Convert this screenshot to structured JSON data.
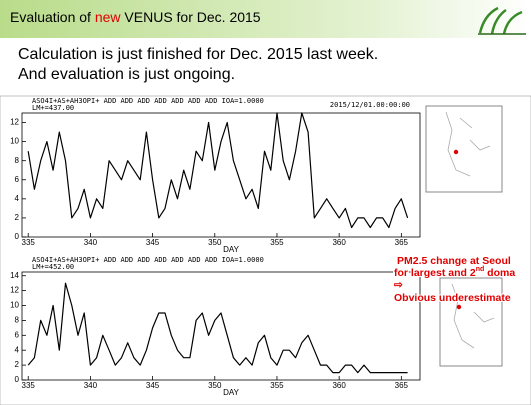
{
  "header": {
    "title_parts": [
      "Evaluation of ",
      "new",
      " VENUS for Dec. 2015"
    ]
  },
  "body": [
    "Calculation is just finished for Dec. 2015 last week.",
    "And evaluation is just ongoing."
  ],
  "annotation": {
    "line1": "PM2.5 change at Seoul",
    "line2_parts": [
      "for largest and 2",
      "nd",
      " doma"
    ],
    "arrow": "⇨",
    "note": "Obvious underestimate"
  },
  "chart_data": [
    {
      "type": "line",
      "title": "ASO4I+AS+AH3OPI+ ADD ADD ADD ADD ADD ADD ADD IOA=1.0000",
      "subtitle": "LM+=437.00",
      "date": "2015/12/01.00:00:00",
      "xlabel": "DAY",
      "x": [
        335,
        335.5,
        336,
        336.5,
        337,
        337.5,
        338,
        338.5,
        339,
        339.5,
        340,
        340.5,
        341,
        341.5,
        342,
        342.5,
        343,
        343.5,
        344,
        344.5,
        345,
        345.5,
        346,
        346.5,
        347,
        347.5,
        348,
        348.5,
        349,
        349.5,
        350,
        350.5,
        351,
        351.5,
        352,
        352.5,
        353,
        353.5,
        354,
        354.5,
        355,
        355.5,
        356,
        356.5,
        357,
        357.5,
        358,
        358.5,
        359,
        359.5,
        360,
        360.5,
        361,
        361.5,
        362,
        362.5,
        363,
        363.5,
        364,
        364.5,
        365,
        365.5
      ],
      "series": [
        {
          "color": "#000000",
          "values": [
            9,
            5,
            8,
            10,
            7,
            11,
            8,
            2,
            3,
            5,
            2,
            4,
            3,
            8,
            7,
            6,
            8,
            7,
            6,
            11,
            6,
            2,
            3,
            6,
            4,
            7,
            5,
            9,
            8,
            12,
            7,
            10,
            12,
            8,
            6,
            4,
            5,
            3,
            9,
            7,
            13,
            8,
            6,
            9,
            13,
            11,
            2,
            3,
            4,
            3,
            2,
            3,
            1,
            2,
            2,
            1,
            2,
            2,
            1,
            3,
            4,
            2
          ]
        }
      ],
      "xlim": [
        334.5,
        366.5
      ],
      "xticks": [
        335,
        340,
        345,
        350,
        355,
        360,
        365
      ],
      "ylim": [
        0,
        13
      ],
      "yticks": [
        0,
        2,
        4,
        6,
        8,
        10,
        12
      ]
    },
    {
      "type": "line",
      "title": "ASO4I+AS+AH3OPI+ ADD ADD ADD ADD ADD ADD ADD IOA=1.0000",
      "subtitle": "LM+=452.00",
      "xlabel": "DAY",
      "x": [
        335,
        335.5,
        336,
        336.5,
        337,
        337.5,
        338,
        338.5,
        339,
        339.5,
        340,
        340.5,
        341,
        341.5,
        342,
        342.5,
        343,
        343.5,
        344,
        344.5,
        345,
        345.5,
        346,
        346.5,
        347,
        347.5,
        348,
        348.5,
        349,
        349.5,
        350,
        350.5,
        351,
        351.5,
        352,
        352.5,
        353,
        353.5,
        354,
        354.5,
        355,
        355.5,
        356,
        356.5,
        357,
        357.5,
        358,
        358.5,
        359,
        359.5,
        360,
        360.5,
        361,
        361.5,
        362,
        362.5,
        363,
        363.5,
        364,
        364.5,
        365,
        365.5
      ],
      "series": [
        {
          "color": "#000000",
          "values": [
            2,
            3,
            8,
            6,
            10,
            4,
            13,
            10,
            6,
            9,
            2,
            3,
            6,
            4,
            2,
            3,
            5,
            3,
            2,
            4,
            7,
            9,
            9,
            6,
            4,
            3,
            3,
            8,
            9,
            6,
            8,
            9,
            6,
            3,
            2,
            3,
            2,
            5,
            6,
            3,
            2,
            4,
            4,
            3,
            5,
            6,
            4,
            2,
            2,
            1,
            1,
            2,
            2,
            1,
            2,
            1,
            1,
            1,
            1,
            1,
            1,
            1
          ]
        }
      ],
      "xlim": [
        334.5,
        366.5
      ],
      "xticks": [
        335,
        340,
        345,
        350,
        355,
        360,
        365
      ],
      "ylim": [
        0,
        14.5
      ],
      "yticks": [
        0,
        2,
        4,
        6,
        8,
        10,
        12,
        14
      ]
    }
  ]
}
